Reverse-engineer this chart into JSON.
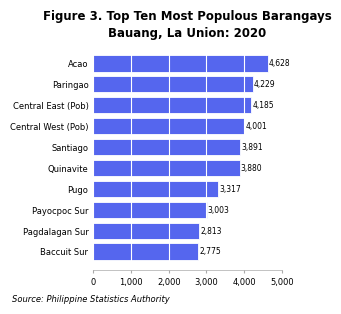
{
  "title": "Figure 3. Top Ten Most Populous Barangays\nBauang, La Union: 2020",
  "categories": [
    "Baccuit Sur",
    "Pagdalagan Sur",
    "Payocpoc Sur",
    "Pugo",
    "Quinavite",
    "Santiago",
    "Central West (Pob)",
    "Central East (Pob)",
    "Paringao",
    "Acao"
  ],
  "values": [
    2775,
    2813,
    3003,
    3317,
    3880,
    3891,
    4001,
    4185,
    4229,
    4628
  ],
  "bar_color": "#5566ee",
  "xlim": [
    0,
    5000
  ],
  "xticks": [
    0,
    1000,
    2000,
    3000,
    4000,
    5000
  ],
  "source": "Source: Philippine Statistics Authority",
  "title_fontsize": 8.5,
  "label_fontsize": 6,
  "value_fontsize": 5.5,
  "source_fontsize": 6,
  "tick_fontsize": 6,
  "background_color": "#ffffff"
}
